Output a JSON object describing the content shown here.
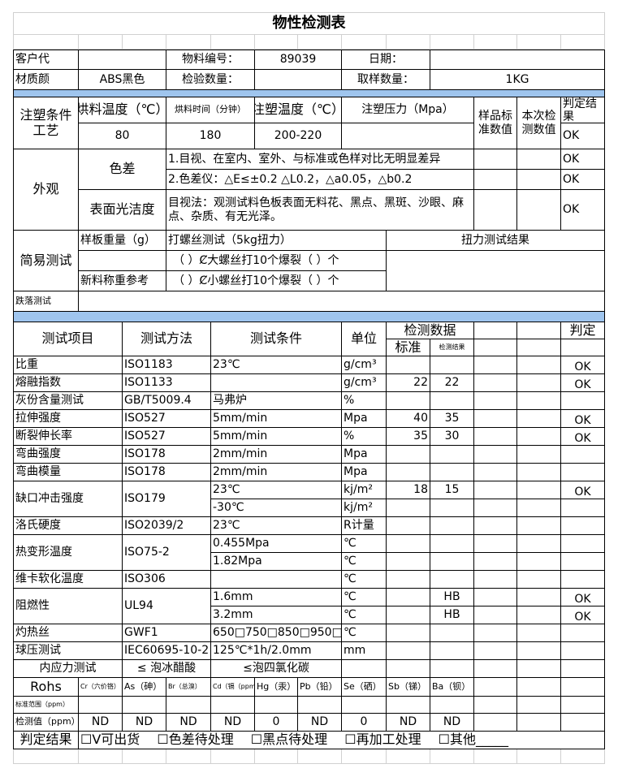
{
  "title": "物性检测表",
  "info": {
    "customer_label": "客户代",
    "material_no_label": "物料编号：",
    "material_no": "89039",
    "date_label": "日期：",
    "material_label": "材质颜",
    "material": "ABS黑色",
    "inspect_qty_label": "检验数量：",
    "sample_qty_label": "取样数量：",
    "sample_qty": "1KG"
  },
  "molding": {
    "section": "注塑条件工艺",
    "dry_temp_label": "烘料温度（℃）",
    "dry_time_label": "烘料时间（分钟）",
    "mold_temp_label": "注塑温度（℃）",
    "pressure_label": "注塑压力（Mpa）",
    "sample_std_label": "样品标准数值",
    "this_test_label": "本次检测数值",
    "verdict_label": "判定结果",
    "dry_temp": "80",
    "dry_time": "180",
    "mold_temp": "200-220",
    "verdict": "OK"
  },
  "appearance": {
    "section": "外观",
    "color_diff_label": "色差",
    "color_diff_1": "1.目视、在室内、室外、与标准或色样对比无明显差异",
    "color_diff_2": "2.色差仪：△E≤±0.2  △L0.2，△a0.05，△b0.2",
    "surface_label": "表面光洁度",
    "surface_text": "目视法：观测试料色板表面无料花、黑点、黑斑、沙眼、麻点、杂质、有无光泽。",
    "verdict_1": "OK",
    "verdict_2": "OK",
    "verdict_3": "OK"
  },
  "simple_test": {
    "section": "简易测试",
    "plate_weight_label": "样板重量（g）",
    "screw_test_label": "打螺丝测试（5kg扭力）",
    "torque_result_label": "扭力测试结果",
    "big_screw": "（ ）Ȼ大螺丝打10个爆裂（ ）个",
    "new_material_label": "新料称重参考",
    "small_screw": "（ ）Ȼ小螺丝打10个爆裂（ ）个",
    "drop_test_label": "跌落测试"
  },
  "test_header": {
    "item": "测试项目",
    "method": "测试方法",
    "condition": "测试条件",
    "unit": "单位",
    "data": "检测数据",
    "standard": "标准",
    "result": "检测结果",
    "verdict": "判定"
  },
  "tests": [
    {
      "item": "比重",
      "method": "ISO1183",
      "condition": "23℃",
      "unit": "g/cm³",
      "standard": "",
      "result": "",
      "verdict": "OK"
    },
    {
      "item": "熔融指数",
      "method": "ISO1133",
      "condition": "",
      "unit": "g/cm³",
      "standard": "22",
      "result": "22",
      "verdict": "OK"
    },
    {
      "item": "灰份含量测试",
      "method": "GB/T5009.4",
      "condition": "马弗炉",
      "unit": "%",
      "standard": "",
      "result": "",
      "verdict": ""
    },
    {
      "item": "拉伸强度",
      "method": "ISO527",
      "condition": "5mm/min",
      "unit": "Mpa",
      "standard": "40",
      "result": "35",
      "verdict": "OK"
    },
    {
      "item": "断裂伸长率",
      "method": "ISO527",
      "condition": "5mm/min",
      "unit": "%",
      "standard": "35",
      "result": "30",
      "verdict": "OK"
    },
    {
      "item": "弯曲强度",
      "method": "ISO178",
      "condition": "2mm/min",
      "unit": "Mpa",
      "standard": "",
      "result": "",
      "verdict": ""
    },
    {
      "item": "弯曲模量",
      "method": "ISO178",
      "condition": "2mm/min",
      "unit": "Mpa",
      "standard": "",
      "result": "",
      "verdict": ""
    },
    {
      "item": "缺口冲击强度",
      "method": "ISO179",
      "condition": " 23℃",
      "unit": "kj/m²",
      "standard": "18",
      "result": "15",
      "verdict": "OK"
    },
    {
      "item": null,
      "method": null,
      "condition": "-30℃",
      "unit": "kj/m²",
      "standard": "",
      "result": "",
      "verdict": ""
    },
    {
      "item": "洛氏硬度",
      "method": "ISO2039/2",
      "condition": "23℃",
      "unit": "R计量",
      "standard": "",
      "result": "",
      "verdict": ""
    },
    {
      "item": "热变形温度",
      "method": "ISO75-2",
      "condition": "0.455Mpa",
      "unit": "℃",
      "standard": "",
      "result": "",
      "verdict": ""
    },
    {
      "item": null,
      "method": null,
      "condition": "1.82Mpa",
      "unit": "℃",
      "standard": "",
      "result": "",
      "verdict": ""
    },
    {
      "item": "维卡软化温度",
      "method": "ISO306",
      "condition": "",
      "unit": "℃",
      "standard": "",
      "result": "",
      "verdict": ""
    },
    {
      "item": "阻燃性",
      "method": "UL94",
      "condition": "1.6mm",
      "unit": "℃",
      "standard": "",
      "result": "HB",
      "verdict": "OK"
    },
    {
      "item": null,
      "method": null,
      "condition": "3.2mm",
      "unit": "℃",
      "standard": "",
      "result": "HB",
      "verdict": "OK"
    },
    {
      "item": "灼热丝",
      "method": "GWF1",
      "condition": "650□750□850□950□",
      "unit": "℃",
      "standard": "",
      "result": "",
      "verdict": ""
    },
    {
      "item": "球压测试",
      "method": "IEC60695-10-2",
      "condition": "125℃*1h/2.0mm",
      "unit": "mm",
      "standard": "",
      "result": "",
      "verdict": ""
    }
  ],
  "stress_test": {
    "label": "内应力测试",
    "acetic": "≤ 泡冰醋酸",
    "ccl4": "≤泡四氯化碳"
  },
  "rohs": {
    "label": "Rohs",
    "elements": [
      "Cr（六价铬）",
      "As（砷）",
      "Br（总溴）",
      "Cd（镉（ppm）",
      "Hg（汞）",
      "Pb（铅）",
      "Se（硒）",
      "Sb（锑）",
      "Ba（钡）"
    ],
    "standard_label": "标准范围（ppm）",
    "measured_label": "检测值（ppm）",
    "measured": [
      "ND",
      "ND",
      "ND",
      "ND",
      "0",
      "ND",
      "0",
      "ND",
      "ND"
    ]
  },
  "result": {
    "label": "判定结果",
    "options": "☐V可出货　 ☐色差待处理　 ☐黑点待处理　 ☐再加工处理　 ☐其他_____"
  },
  "colors": {
    "band": "#9fc5ee",
    "grid_light": "#d0d0d0",
    "border": "#000000"
  }
}
